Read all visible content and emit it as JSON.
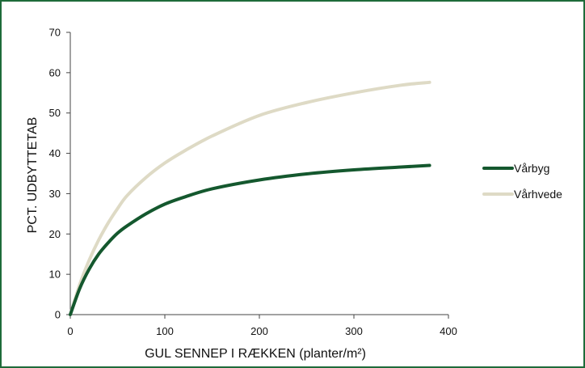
{
  "chart_data": {
    "type": "line",
    "title": "",
    "xlabel": "GUL SENNEP I RÆKKEN (planter/m²)",
    "ylabel": "PCT. UDBYTTETAB",
    "xlim": [
      0,
      400
    ],
    "ylim": [
      0,
      70
    ],
    "x_ticks": [
      "0",
      "100",
      "200",
      "300",
      "400"
    ],
    "y_ticks": [
      "0",
      "10",
      "20",
      "30",
      "40",
      "50",
      "60",
      "70"
    ],
    "grid": false,
    "legend_position": "right",
    "series": [
      {
        "name": "Vårbyg",
        "color": "#14582e",
        "x": [
          0,
          10,
          20,
          30,
          40,
          50,
          60,
          80,
          100,
          120,
          150,
          200,
          250,
          300,
          350,
          380
        ],
        "y": [
          0,
          6.5,
          11.3,
          15,
          17.8,
          20.2,
          22,
          25,
          27.4,
          29.1,
          31.2,
          33.4,
          34.9,
          35.9,
          36.6,
          37
        ]
      },
      {
        "name": "Vårhvede",
        "color": "#dedac5",
        "x": [
          0,
          10,
          20,
          30,
          40,
          50,
          60,
          80,
          100,
          120,
          150,
          200,
          250,
          300,
          350,
          380
        ],
        "y": [
          0,
          7.5,
          13.5,
          18.5,
          22.7,
          26.3,
          29.5,
          34,
          37.6,
          40.5,
          44.3,
          49.4,
          52.6,
          55,
          56.9,
          57.6
        ]
      }
    ]
  }
}
